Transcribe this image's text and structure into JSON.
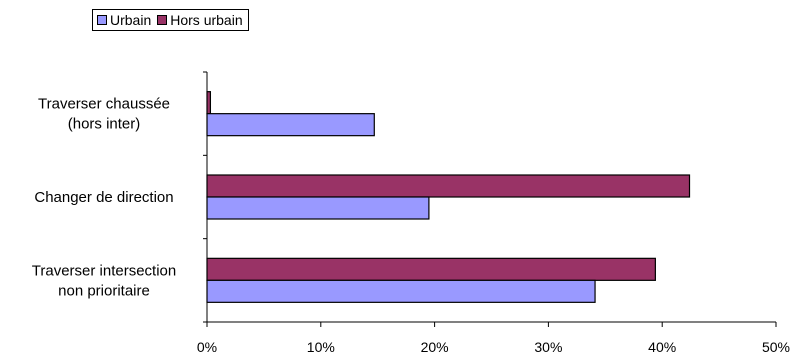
{
  "chart_data": {
    "type": "bar",
    "orientation": "horizontal",
    "categories": [
      [
        "Traverser chaussée",
        "(hors inter)"
      ],
      [
        "Changer de direction"
      ],
      [
        "Traverser intersection",
        "non prioritaire"
      ]
    ],
    "series": [
      {
        "name": "Urbain",
        "color": "#9999ff",
        "values": [
          14.7,
          19.5,
          34.1
        ]
      },
      {
        "name": "Hors urbain",
        "color": "#993366",
        "values": [
          0.3,
          42.4,
          39.4
        ]
      }
    ],
    "xlim": [
      0,
      50
    ],
    "xticks": [
      0,
      10,
      20,
      30,
      40,
      50
    ],
    "tick_format": "{v}%",
    "legend_position": "top-left",
    "grid": false,
    "title": "",
    "xlabel": "",
    "ylabel": ""
  }
}
